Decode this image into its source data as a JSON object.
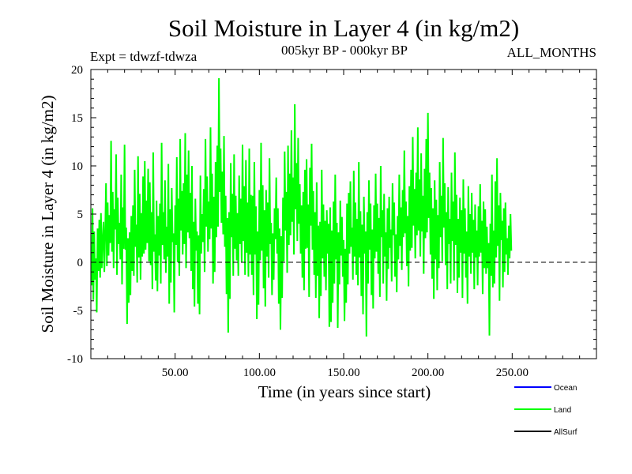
{
  "chart_data": {
    "type": "line",
    "title": "Soil Moisture in Layer 4 (in kg/m2)",
    "subtitle": "005kyr BP - 000kyr BP",
    "experiment": "Expt = tdwzf-tdwza",
    "period": "ALL_MONTHS",
    "xlabel": "Time (in years since start)",
    "ylabel": "Soil Moisture in Layer 4 (in kg/m2)",
    "xlim": [
      0,
      300
    ],
    "ylim": [
      -10,
      20
    ],
    "x_ticks": [
      50,
      100,
      150,
      200,
      250
    ],
    "x_tick_labels": [
      "50.00",
      "100.00",
      "150.00",
      "200.00",
      "250.00"
    ],
    "y_ticks": [
      -10,
      -5,
      0,
      5,
      10,
      15,
      20
    ],
    "y_tick_labels": [
      "-10",
      "-5",
      "0",
      "5",
      "10",
      "15",
      "20"
    ],
    "reference_line": 0,
    "grid": false,
    "legend_position": "bottom-right",
    "legend": [
      {
        "name": "Ocean",
        "label": "Ocean",
        "color": "#0000ff"
      },
      {
        "name": "Land",
        "label": "Land",
        "color": "#00ff00"
      },
      {
        "name": "AllSurf",
        "label": "AllSurf",
        "color": "#000000"
      }
    ],
    "series": [
      {
        "name": "Land",
        "color": "#00ff00",
        "x_start": 0,
        "x_step": 0.5,
        "values": [
          1.6,
          -2.4,
          5.6,
          -3.9,
          3.2,
          -1.8,
          0.4,
          -5.2,
          3.5,
          -0.9,
          4.4,
          -1.6,
          5.1,
          -0.6,
          2.3,
          4.2,
          -1.0,
          3.0,
          8.2,
          -0.4,
          6.2,
          0.7,
          4.9,
          2.0,
          12.6,
          1.1,
          7.3,
          -0.6,
          5.5,
          3.4,
          11.2,
          -1.3,
          6.7,
          1.9,
          4.1,
          0.3,
          9.1,
          -2.3,
          5.7,
          1.4,
          12.2,
          1.3,
          3.6,
          -6.4,
          2.5,
          -4.2,
          3.1,
          -3.4,
          4.8,
          -0.9,
          5.9,
          -1.4,
          9.6,
          1.6,
          3.9,
          -2.1,
          11.0,
          0.5,
          7.1,
          -1.8,
          5.1,
          0.6,
          8.9,
          0.9,
          10.5,
          1.3,
          6.4,
          2.0,
          9.7,
          0.1,
          8.3,
          -0.3,
          5.2,
          -2.8,
          11.4,
          1.1,
          2.9,
          -1.9,
          6.4,
          -3.0,
          4.8,
          0.7,
          6.1,
          -2.2,
          12.4,
          1.8,
          5.2,
          0.3,
          8.5,
          -1.1,
          3.7,
          0.6,
          10.2,
          -4.3,
          5.5,
          -2.1,
          7.7,
          2.1,
          3.0,
          -5.2,
          5.9,
          1.8,
          10.9,
          0.0,
          6.6,
          -1.4,
          12.8,
          3.3,
          7.4,
          0.8,
          8.2,
          1.9,
          13.4,
          -0.6,
          9.1,
          3.1,
          11.6,
          2.5,
          7.2,
          -0.9,
          10.0,
          -2.8,
          4.2,
          -4.6,
          6.6,
          1.2,
          3.2,
          -4.3,
          2.8,
          -5.4,
          9.0,
          0.9,
          5.0,
          2.1,
          7.6,
          -1.0,
          12.8,
          3.7,
          8.9,
          1.1,
          6.3,
          2.4,
          14.0,
          3.5,
          9.2,
          -2.2,
          6.8,
          -1.0,
          10.4,
          2.6,
          12.1,
          3.7,
          19.1,
          7.3,
          11.8,
          4.1,
          9.4,
          2.9,
          13.1,
          1.6,
          6.9,
          -3.3,
          4.6,
          -7.3,
          5.2,
          -3.8,
          10.3,
          2.6,
          7.1,
          -1.4,
          11.2,
          1.4,
          6.9,
          0.2,
          5.1,
          -1.4,
          9.0,
          1.9,
          6.6,
          0.0,
          12.2,
          2.2,
          7.9,
          -1.3,
          10.6,
          1.0,
          6.2,
          -1.5,
          11.8,
          0.8,
          7.0,
          -1.3,
          6.9,
          -3.4,
          10.4,
          0.8,
          5.8,
          -5.9,
          3.2,
          -4.4,
          7.5,
          0.2,
          12.4,
          1.2,
          8.0,
          -2.7,
          5.4,
          -4.6,
          7.5,
          0.6,
          6.2,
          -1.6,
          10.8,
          1.9,
          4.1,
          -3.4,
          3.0,
          -1.8,
          5.6,
          2.4,
          8.8,
          0.9,
          5.6,
          -4.3,
          3.5,
          -7.0,
          2.7,
          -3.7,
          6.7,
          0.1,
          11.5,
          3.3,
          7.3,
          -1.1,
          12.1,
          1.8,
          9.2,
          2.8,
          13.7,
          4.2,
          8.8,
          0.8,
          16.4,
          5.5,
          10.3,
          2.2,
          12.9,
          4.0,
          8.1,
          0.9,
          5.9,
          -1.6,
          7.3,
          -2.9,
          9.6,
          1.4,
          10.7,
          1.5,
          6.0,
          -3.6,
          9.8,
          3.8,
          12.3,
          1.3,
          7.4,
          -1.3,
          5.2,
          -3.7,
          8.3,
          -1.4,
          3.8,
          -5.8,
          4.2,
          -3.5,
          9.6,
          0.4,
          6.0,
          -1.5,
          4.3,
          -2.9,
          5.4,
          0.9,
          4.0,
          -6.7,
          5.7,
          -6.2,
          3.3,
          -4.2,
          6.3,
          -2.2,
          9.1,
          0.3,
          4.1,
          -6.8,
          3.1,
          -2.3,
          6.4,
          0.7,
          4.7,
          -1.5,
          2.3,
          -6.1,
          1.4,
          -4.2,
          6.1,
          -2.3,
          7.2,
          0.9,
          8.4,
          1.6,
          3.6,
          -1.8,
          9.5,
          0.6,
          6.2,
          -1.3,
          4.5,
          -2.4,
          10.4,
          0.5,
          5.3,
          -3.5,
          3.9,
          -5.4,
          6.8,
          0.9,
          3.2,
          -7.7,
          5.2,
          -2.2,
          8.5,
          1.3,
          6.1,
          -3.4,
          3.4,
          -4.8,
          5.9,
          0.4,
          9.2,
          1.1,
          6.1,
          -1.2,
          4.6,
          -3.6,
          10.0,
          2.6,
          5.4,
          -2.2,
          7.1,
          0.6,
          3.1,
          -4.0,
          5.6,
          -0.7,
          6.8,
          1.5,
          3.4,
          -2.0,
          8.2,
          2.8,
          6.2,
          -1.5,
          2.9,
          -3.1,
          4.8,
          0.3,
          9.1,
          1.7,
          5.7,
          -0.8,
          7.5,
          2.6,
          11.6,
          3.0,
          6.3,
          -0.4,
          4.8,
          -2.5,
          7.9,
          1.2,
          9.6,
          1.5,
          13.0,
          3.8,
          7.6,
          0.4,
          9.3,
          2.8,
          14.0,
          3.3,
          8.6,
          0.6,
          11.3,
          3.2,
          6.9,
          -1.2,
          9.7,
          2.5,
          12.8,
          3.1,
          15.5,
          4.6,
          9.3,
          0.8,
          7.7,
          -1.7,
          5.6,
          -3.8,
          8.5,
          0.3,
          6.5,
          -2.9,
          4.9,
          -0.6,
          10.4,
          2.6,
          6.9,
          0.1,
          12.9,
          3.6,
          8.2,
          -0.3,
          5.2,
          -2.8,
          7.8,
          1.9,
          4.5,
          -2.2,
          9.3,
          2.2,
          6.3,
          -1.9,
          11.4,
          1.8,
          7.0,
          -3.2,
          4.5,
          -1.6,
          6.7,
          1.0,
          5.4,
          -3.7,
          8.6,
          0.9,
          5.6,
          -1.6,
          3.2,
          -4.3,
          7.9,
          0.6,
          5.0,
          -1.2,
          7.2,
          1.0,
          4.4,
          -2.8,
          6.0,
          0.5,
          3.3,
          -2.4,
          5.8,
          0.6,
          8.1,
          1.0,
          4.3,
          -3.3,
          6.3,
          -0.6,
          5.5,
          -1.2,
          3.7,
          -0.6,
          2.0,
          -7.6,
          4.0,
          -1.4,
          9.1,
          -2.6,
          3.3,
          -2.2,
          8.4,
          0.5,
          10.8,
          1.7,
          5.9,
          -4.0,
          7.2,
          2.3,
          4.3,
          -2.6,
          5.6,
          -1.0,
          6.2,
          0.8,
          2.5,
          -1.3,
          3.8,
          0.4,
          5.0,
          1.2
        ]
      }
    ]
  }
}
